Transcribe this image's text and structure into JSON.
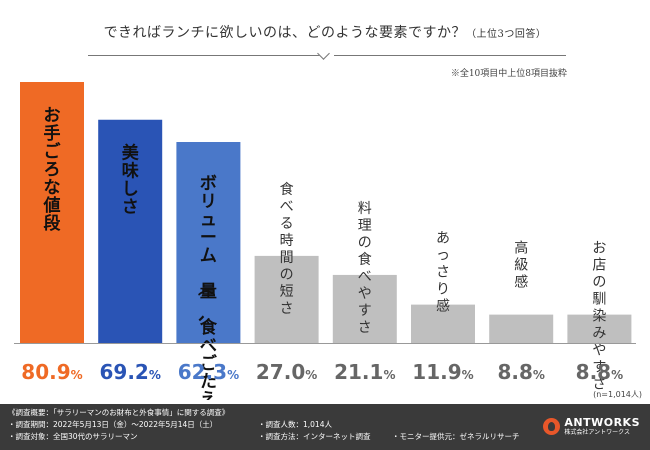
{
  "question": {
    "text": "できればランチに欲しいのは、どのような要素ですか？",
    "sub": "（上位3つ回答）"
  },
  "note": "※全10項目中上位8項目抜粋",
  "chart_data": {
    "type": "bar",
    "title": "できればランチに欲しいのは、どのような要素ですか？（上位3つ回答）",
    "categories": [
      "お手ごろな値段",
      "美味しさ",
      "ボリューム（量、食べごたえ）",
      "食べる時間の短さ",
      "料理の食べやすさ",
      "あっさり感",
      "高級感",
      "お店の馴染みやすさ"
    ],
    "values": [
      80.9,
      69.2,
      62.3,
      27.0,
      21.1,
      11.9,
      8.8,
      8.8
    ],
    "value_labels": [
      "80.9%",
      "69.2%",
      "62.3%",
      "27.0%",
      "21.1%",
      "11.9%",
      "8.8%",
      "8.8%"
    ],
    "colors": [
      "#ef6a25",
      "#2a54b5",
      "#4a78c9",
      "#bfbfbf",
      "#bfbfbf",
      "#bfbfbf",
      "#bfbfbf",
      "#bfbfbf"
    ],
    "label_colors": [
      "#ef6a25",
      "#2a54b5",
      "#4a78c9",
      "#666666",
      "#666666",
      "#666666",
      "#666666",
      "#666666"
    ],
    "ylim": [
      0,
      100
    ],
    "unit": "%"
  },
  "sample_size": "(n=1,014人)",
  "footer": {
    "title": "《調査概要：「サラリーマンのお財布と外食事情」に関する調査》",
    "period": "・調査期間：2022年5月13日（金）～2022年5月14日（土）",
    "target": "・調査対象：全国30代のサラリーマン",
    "count": "・調査人数：1,014人",
    "method": "・調査方法：インターネット調査",
    "provider": "・モニター提供元：ゼネラルリサーチ",
    "logo_name": "ANTWORKS",
    "logo_sub": "株式会社アントワークス"
  }
}
